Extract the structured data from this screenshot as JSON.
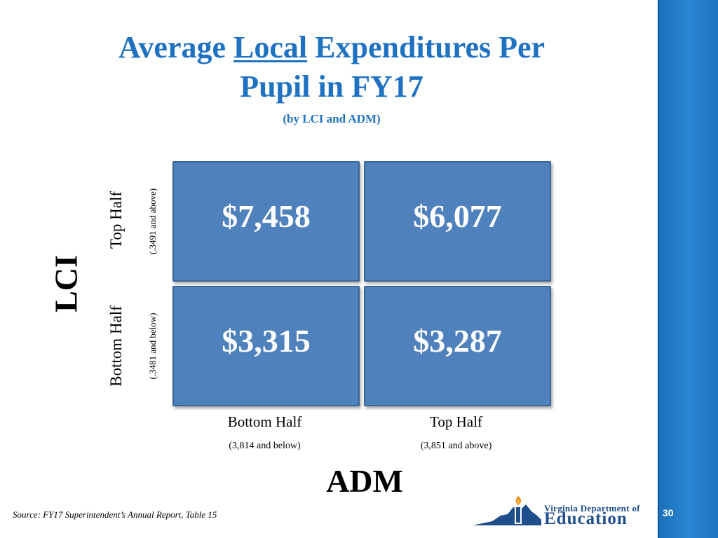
{
  "slide": {
    "title_pre": "Average ",
    "title_underlined": "Local",
    "title_post": " Expenditures Per",
    "title_line2": "Pupil in FY17",
    "subtitle": "(by LCI and ADM)",
    "source": "Source: FY17 Superintendent’s Annual Report, Table 15",
    "page_number": "30",
    "logo": {
      "line1": "Virginia Department of",
      "line2": "Education"
    },
    "colors": {
      "title": "#1f72c2",
      "cell_fill": "#4f81bd",
      "sidebar": "#2a86d3"
    }
  },
  "chart_data": {
    "type": "table",
    "title": "Average Local Expenditures Per Pupil in FY17",
    "subtitle": "(by LCI and ADM)",
    "row_axis_label": "LCI",
    "col_axis_label": "ADM",
    "rows": [
      {
        "label": "Top Half",
        "sub": "(.3491 and above)"
      },
      {
        "label": "Bottom Half",
        "sub": "(.3481 and below)"
      }
    ],
    "columns": [
      {
        "label": "Bottom Half",
        "sub": "(3,814 and below)"
      },
      {
        "label": "Top Half",
        "sub": "(3,851 and above)"
      }
    ],
    "values": [
      [
        7458,
        6077
      ],
      [
        3315,
        3287
      ]
    ],
    "value_labels": [
      [
        "$7,458",
        "$6,077"
      ],
      [
        "$3,315",
        "$3,287"
      ]
    ]
  }
}
